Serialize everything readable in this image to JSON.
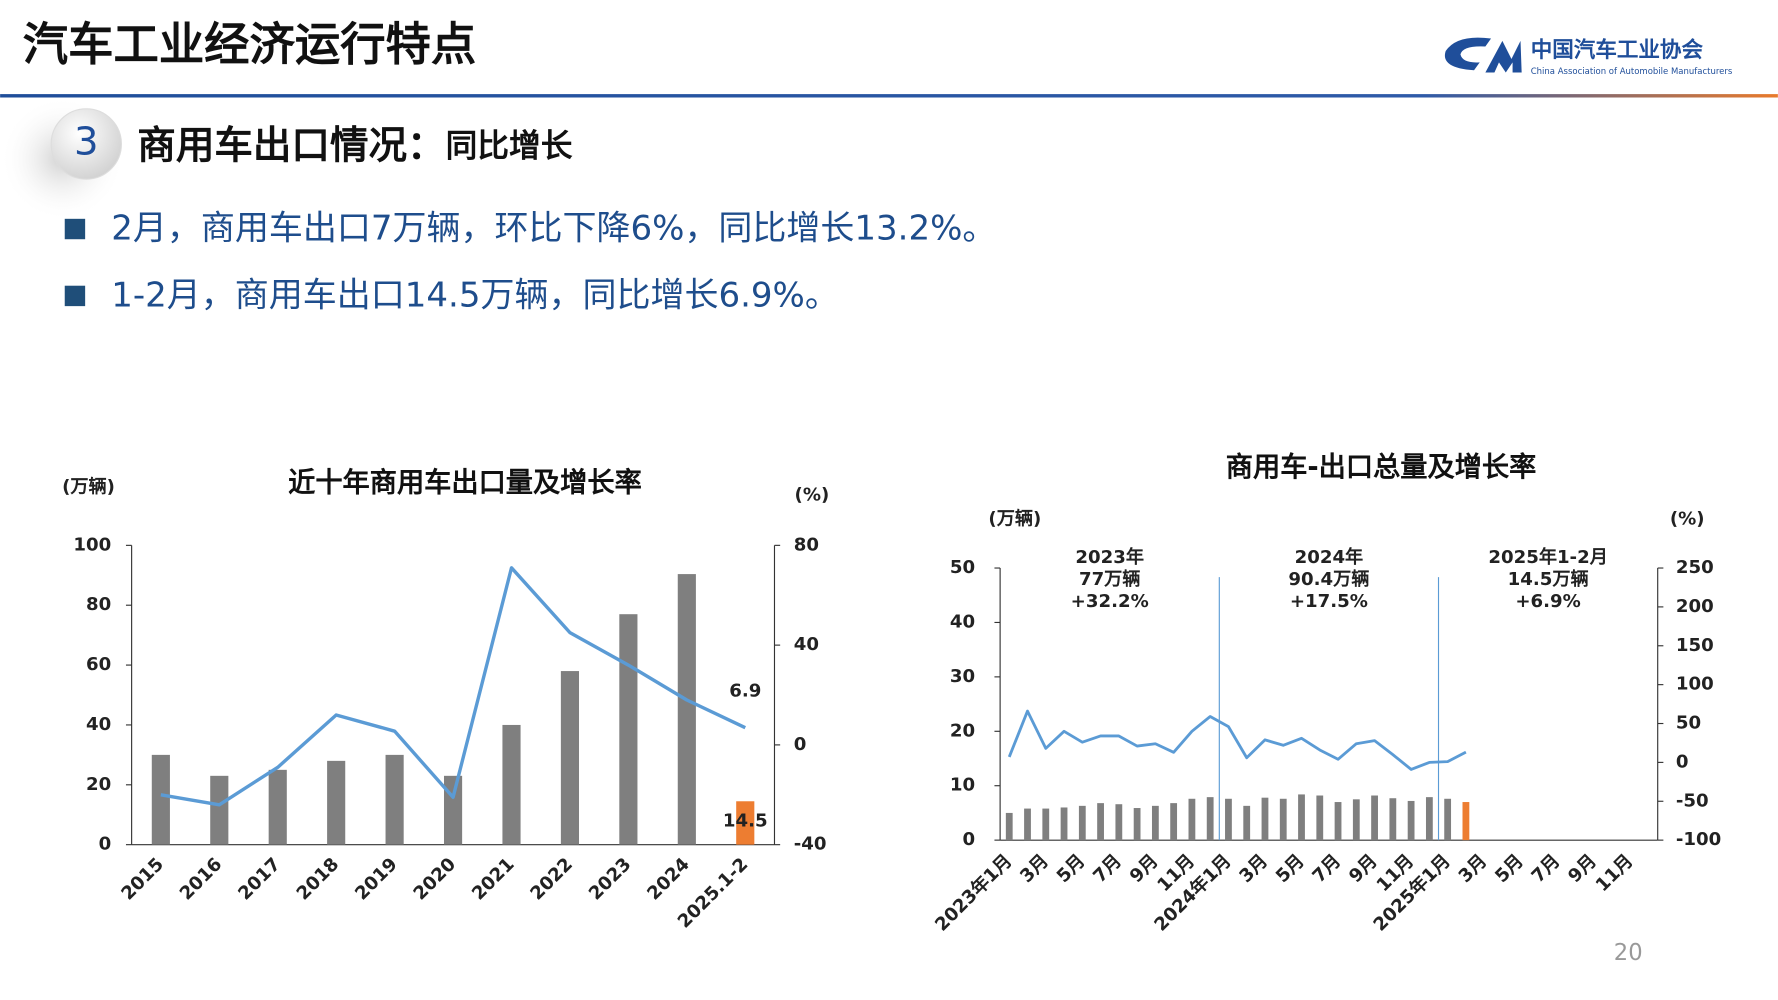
{
  "header": {
    "title": "汽车工业经济运行特点",
    "org_cn": "中国汽车工业协会",
    "org_en": "China Association of Automobile Manufacturers"
  },
  "section": {
    "number": "3",
    "title": "商用车出口情况：",
    "subtitle": "同比增长"
  },
  "bullets": [
    "2月，商用车出口7万辆，环比下降6%，同比增长13.2%。",
    "1-2月，商用车出口14.5万辆，同比增长6.9%。"
  ],
  "page_number": "20",
  "chart_data": [
    {
      "type": "combo",
      "title": "近十年商用车出口量及增长率",
      "y_label": "(万辆)",
      "y2_label": "(%)",
      "categories": [
        "2015",
        "2016",
        "2017",
        "2018",
        "2019",
        "2020",
        "2021",
        "2022",
        "2023",
        "2024",
        "2025.1-2"
      ],
      "series": [
        {
          "kind": "bar",
          "values": [
            30,
            23,
            25,
            28,
            30,
            23,
            40,
            58,
            77,
            90.4,
            14.5
          ],
          "colors": [
            "#7f7f7f",
            "#7f7f7f",
            "#7f7f7f",
            "#7f7f7f",
            "#7f7f7f",
            "#7f7f7f",
            "#7f7f7f",
            "#7f7f7f",
            "#7f7f7f",
            "#7f7f7f",
            "#ed7d31"
          ],
          "label_index": 10
        },
        {
          "kind": "line",
          "axis": "y2",
          "color": "#5b9bd5",
          "values": [
            -20,
            -24,
            -9,
            12,
            5.5,
            -21,
            71,
            45,
            32,
            18,
            6.9
          ],
          "label_index": 10
        }
      ],
      "ylim": [
        0,
        100
      ],
      "yticks": [
        0,
        20,
        40,
        60,
        80,
        100
      ],
      "y2lim": [
        -40,
        80
      ],
      "y2ticks": [
        -40,
        0,
        40,
        80
      ]
    },
    {
      "type": "combo",
      "title": "商用车-出口总量及增长率",
      "y_label": "(万辆)",
      "y2_label": "(%)",
      "categories": [
        "2023年1月",
        null,
        "3月",
        null,
        "5月",
        null,
        "7月",
        null,
        "9月",
        null,
        "11月",
        null,
        "2024年1月",
        null,
        "3月",
        null,
        "5月",
        null,
        "7月",
        null,
        "9月",
        null,
        "11月",
        null,
        "2025年1月",
        null,
        "3月",
        null,
        "5月",
        null,
        "7月",
        null,
        "9月",
        null,
        "11月",
        null
      ],
      "series": [
        {
          "kind": "bar",
          "values": [
            5,
            5.8,
            5.8,
            6,
            6.3,
            6.8,
            6.6,
            5.9,
            6.3,
            6.8,
            7.6,
            7.9,
            7.6,
            6.3,
            7.8,
            7.6,
            8.4,
            8.2,
            7,
            7.5,
            8.2,
            7.7,
            7.2,
            7.9,
            7.6,
            7,
            null,
            null,
            null,
            null,
            null,
            null,
            null,
            null,
            null,
            null
          ],
          "colors": [
            "#7f7f7f",
            "#7f7f7f",
            "#7f7f7f",
            "#7f7f7f",
            "#7f7f7f",
            "#7f7f7f",
            "#7f7f7f",
            "#7f7f7f",
            "#7f7f7f",
            "#7f7f7f",
            "#7f7f7f",
            "#7f7f7f",
            "#7f7f7f",
            "#7f7f7f",
            "#7f7f7f",
            "#7f7f7f",
            "#7f7f7f",
            "#7f7f7f",
            "#7f7f7f",
            "#7f7f7f",
            "#7f7f7f",
            "#7f7f7f",
            "#7f7f7f",
            "#7f7f7f",
            "#7f7f7f",
            "#ed7d31",
            null,
            null,
            null,
            null,
            null,
            null,
            null,
            null,
            null,
            null
          ]
        },
        {
          "kind": "line",
          "axis": "y2",
          "color": "#5b9bd5",
          "values": [
            7,
            66,
            18,
            40,
            26,
            34,
            34,
            21,
            24,
            13,
            40,
            59,
            46,
            6,
            29,
            22,
            31,
            16,
            4,
            24,
            28,
            10,
            -9,
            0,
            1,
            13.2,
            null,
            null,
            null,
            null,
            null,
            null,
            null,
            null,
            null,
            null
          ]
        }
      ],
      "annotations": [
        [
          "2023年",
          "77万辆",
          "+32.2%"
        ],
        [
          "2024年",
          "90.4万辆",
          "+17.5%"
        ],
        [
          "2025年1-2月",
          "14.5万辆",
          "+6.9%"
        ]
      ],
      "ylim": [
        0,
        50
      ],
      "yticks": [
        0,
        10,
        20,
        30,
        40,
        50
      ],
      "y2lim": [
        -100,
        250
      ],
      "y2ticks": [
        -100,
        -50,
        0,
        50,
        100,
        150,
        200,
        250
      ]
    }
  ]
}
